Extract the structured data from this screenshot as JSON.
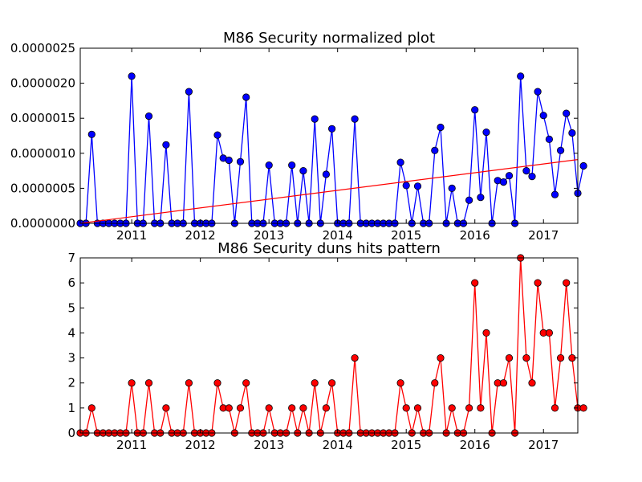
{
  "chart_data": [
    {
      "type": "line",
      "title": "M86 Security normalized plot",
      "x_tick_labels": [
        "2011",
        "2012",
        "2013",
        "2014",
        "2015",
        "2016",
        "2017"
      ],
      "y_tick_labels": [
        "0.0000000",
        "0.0000005",
        "0.0000010",
        "0.0000015",
        "0.0000020",
        "0.0000025"
      ],
      "xlim": [
        "2010-04",
        "2017-07"
      ],
      "ylim": [
        0,
        2.5e-06
      ],
      "grid": false,
      "colors": {
        "series": "#0000ff",
        "trend": "#ff0000"
      },
      "series": [
        {
          "values": [
            0,
            0,
            1.27e-06,
            0,
            0,
            0,
            0,
            0,
            0,
            2.1e-06,
            0,
            0,
            1.53e-06,
            0,
            0,
            1.12e-06,
            0,
            0,
            0,
            1.88e-06,
            0,
            0,
            0,
            0,
            1.26e-06,
            9.3e-07,
            9e-07,
            0,
            8.8e-07,
            1.8e-06,
            0,
            0,
            0,
            8.3e-07,
            0,
            0,
            0,
            8.3e-07,
            0,
            7.5e-07,
            0,
            1.49e-06,
            0,
            7e-07,
            1.35e-06,
            0,
            0,
            0,
            1.49e-06,
            0,
            0,
            0,
            0,
            0,
            0,
            0,
            8.7e-07,
            5.4e-07,
            0,
            5.3e-07,
            0,
            0,
            1.04e-06,
            1.37e-06,
            0,
            5e-07,
            0,
            0,
            3.3e-07,
            1.62e-06,
            3.7e-07,
            1.3e-06,
            0,
            6.1e-07,
            5.9e-07,
            6.8e-07,
            0,
            2.1e-06,
            7.5e-07,
            6.7e-07,
            1.88e-06,
            1.54e-06,
            1.2e-06,
            4.1e-07,
            1.04e-06,
            1.57e-06,
            1.29e-06,
            4.3e-07,
            8.2e-07
          ]
        },
        {
          "values": [
            0,
            9.1e-07
          ]
        }
      ]
    },
    {
      "type": "line",
      "title": "M86 Security duns hits pattern",
      "x_tick_labels": [
        "2011",
        "2012",
        "2013",
        "2014",
        "2015",
        "2016",
        "2017"
      ],
      "y_tick_labels": [
        "0",
        "1",
        "2",
        "3",
        "4",
        "5",
        "6",
        "7"
      ],
      "xlim": [
        "2010-04",
        "2017-07"
      ],
      "ylim": [
        0,
        7
      ],
      "grid": false,
      "colors": {
        "series": "#ff0000"
      },
      "series": [
        {
          "values": [
            0,
            0,
            1,
            0,
            0,
            0,
            0,
            0,
            0,
            2,
            0,
            0,
            2,
            0,
            0,
            1,
            0,
            0,
            0,
            2,
            0,
            0,
            0,
            0,
            2,
            1,
            1,
            0,
            1,
            2,
            0,
            0,
            0,
            1,
            0,
            0,
            0,
            1,
            0,
            1,
            0,
            2,
            0,
            1,
            2,
            0,
            0,
            0,
            3,
            0,
            0,
            0,
            0,
            0,
            0,
            0,
            2,
            1,
            0,
            1,
            0,
            0,
            2,
            3,
            0,
            1,
            0,
            0,
            1,
            6,
            1,
            4,
            0,
            2,
            2,
            3,
            0,
            7,
            3,
            2,
            6,
            4,
            4,
            1,
            3,
            6,
            3,
            1,
            1
          ]
        }
      ]
    }
  ]
}
